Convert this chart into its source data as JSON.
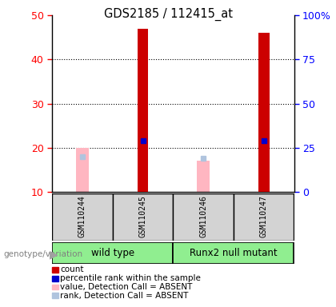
{
  "title": "GDS2185 / 112415_at",
  "samples": [
    "GSM110244",
    "GSM110245",
    "GSM110246",
    "GSM110247"
  ],
  "groups": [
    {
      "name": "wild type",
      "indices": [
        0,
        1
      ]
    },
    {
      "name": "Runx2 null mutant",
      "indices": [
        2,
        3
      ]
    }
  ],
  "counts": [
    null,
    47,
    null,
    46
  ],
  "percentile_ranks": [
    null,
    29,
    null,
    29
  ],
  "absent_values": [
    20,
    null,
    17,
    null
  ],
  "absent_ranks": [
    20,
    null,
    19,
    null
  ],
  "ylim_left": [
    10,
    50
  ],
  "ylim_right": [
    0,
    100
  ],
  "yticks_left": [
    10,
    20,
    30,
    40,
    50
  ],
  "yticks_right": [
    0,
    25,
    50,
    75,
    100
  ],
  "yticks_right_labels": [
    "0",
    "25",
    "50",
    "75",
    "100%"
  ],
  "count_color": "#CC0000",
  "percentile_color": "#0000CC",
  "absent_value_color": "#FFB6C1",
  "absent_rank_color": "#B0C4DE",
  "label_area_color": "#D3D3D3",
  "group_label_color": "#90EE90",
  "genotype_label": "genotype/variation",
  "legend_items": [
    {
      "color": "#CC0000",
      "label": "count"
    },
    {
      "color": "#0000CC",
      "label": "percentile rank within the sample"
    },
    {
      "color": "#FFB6C1",
      "label": "value, Detection Call = ABSENT"
    },
    {
      "color": "#B0C4DE",
      "label": "rank, Detection Call = ABSENT"
    }
  ]
}
